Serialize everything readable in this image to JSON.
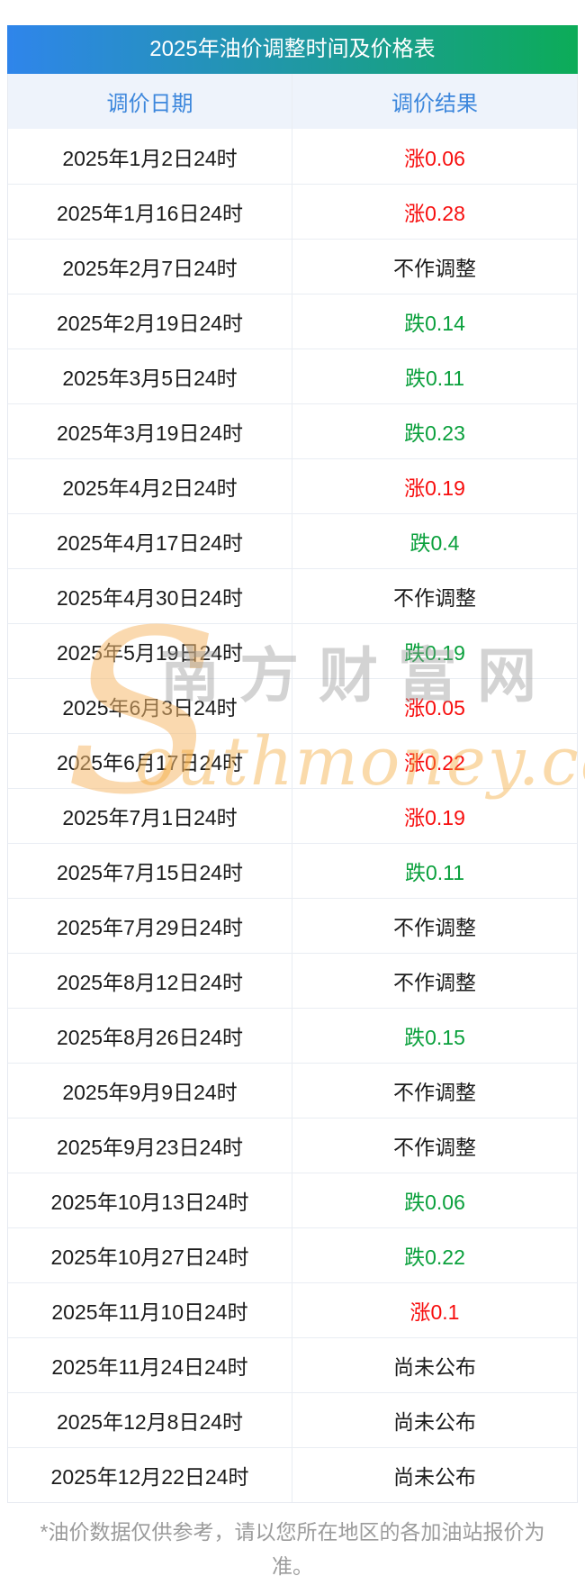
{
  "table": {
    "title": "2025年油价调整时间及价格表",
    "columns": {
      "date": "调价日期",
      "result": "调价结果"
    },
    "rows": [
      {
        "date": "2025年1月2日24时",
        "result": "涨0.06",
        "trend": "up"
      },
      {
        "date": "2025年1月16日24时",
        "result": "涨0.28",
        "trend": "up"
      },
      {
        "date": "2025年2月7日24时",
        "result": "不作调整",
        "trend": "none"
      },
      {
        "date": "2025年2月19日24时",
        "result": "跌0.14",
        "trend": "down"
      },
      {
        "date": "2025年3月5日24时",
        "result": "跌0.11",
        "trend": "down"
      },
      {
        "date": "2025年3月19日24时",
        "result": "跌0.23",
        "trend": "down"
      },
      {
        "date": "2025年4月2日24时",
        "result": "涨0.19",
        "trend": "up"
      },
      {
        "date": "2025年4月17日24时",
        "result": "跌0.4",
        "trend": "down"
      },
      {
        "date": "2025年4月30日24时",
        "result": "不作调整",
        "trend": "none"
      },
      {
        "date": "2025年5月19日24时",
        "result": "跌0.19",
        "trend": "down"
      },
      {
        "date": "2025年6月3日24时",
        "result": "涨0.05",
        "trend": "up"
      },
      {
        "date": "2025年6月17日24时",
        "result": "涨0.22",
        "trend": "up"
      },
      {
        "date": "2025年7月1日24时",
        "result": "涨0.19",
        "trend": "up"
      },
      {
        "date": "2025年7月15日24时",
        "result": "跌0.11",
        "trend": "down"
      },
      {
        "date": "2025年7月29日24时",
        "result": "不作调整",
        "trend": "none"
      },
      {
        "date": "2025年8月12日24时",
        "result": "不作调整",
        "trend": "none"
      },
      {
        "date": "2025年8月26日24时",
        "result": "跌0.15",
        "trend": "down"
      },
      {
        "date": "2025年9月9日24时",
        "result": "不作调整",
        "trend": "none"
      },
      {
        "date": "2025年9月23日24时",
        "result": "不作调整",
        "trend": "none"
      },
      {
        "date": "2025年10月13日24时",
        "result": "跌0.06",
        "trend": "down"
      },
      {
        "date": "2025年10月27日24时",
        "result": "跌0.22",
        "trend": "down"
      },
      {
        "date": "2025年11月10日24时",
        "result": "涨0.1",
        "trend": "up"
      },
      {
        "date": "2025年11月24日24时",
        "result": "尚未公布",
        "trend": "none"
      },
      {
        "date": "2025年12月8日24时",
        "result": "尚未公布",
        "trend": "none"
      },
      {
        "date": "2025年12月22日24时",
        "result": "尚未公布",
        "trend": "none"
      }
    ]
  },
  "watermark": {
    "initial": "S",
    "cjk": "南方财富网",
    "latin": "outhmoney.com"
  },
  "footer": {
    "note": "*油价数据仅供参考，请以您所在地区的各加油站报价为准。"
  },
  "colors": {
    "gradient_start": "#2f85eb",
    "gradient_end": "#0cac58",
    "title_text": "#ffffff",
    "column_header_bg": "#eef3fb",
    "column_header_text": "#3d87dc",
    "cell_text": "#1b1b1b",
    "up_red": "#f70d0d",
    "down_green": "#0aa03c",
    "border": "#e9edf3",
    "footer_text": "#9b9b9b",
    "watermark_gray": "#969696",
    "watermark_orange": "#f3a634"
  }
}
